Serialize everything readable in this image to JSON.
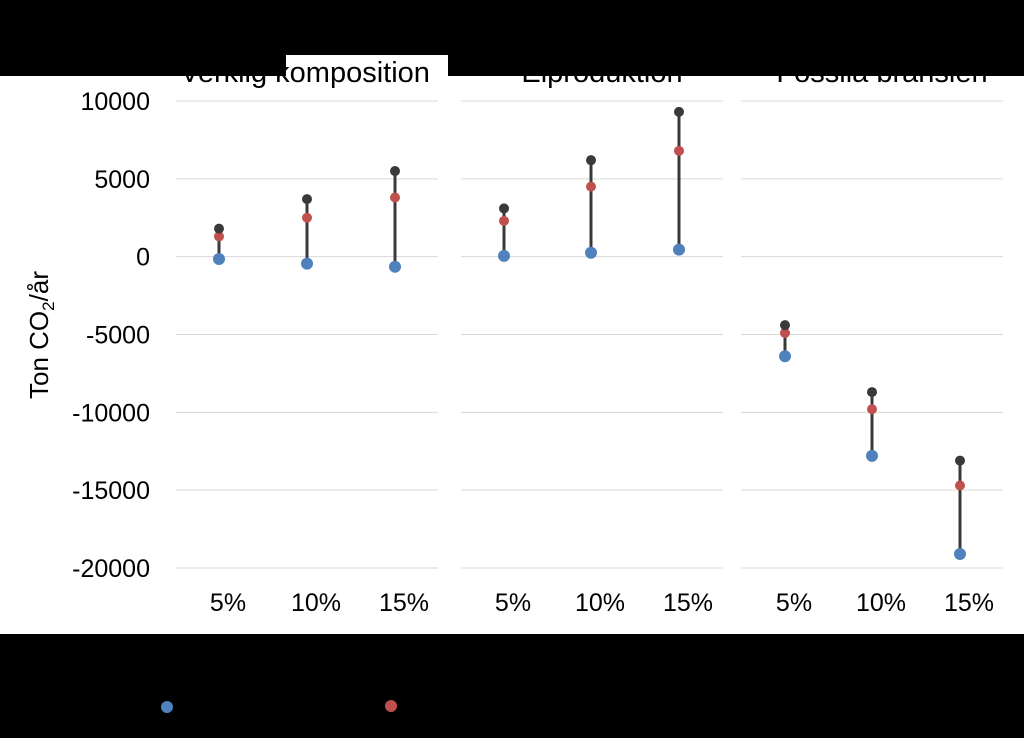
{
  "chart_data": {
    "type": "scatter",
    "style": "dumbbell",
    "ylabel": "Ton CO2/år",
    "ylabel_main": "Ton CO",
    "ylabel_sub": "2",
    "ylabel_tail": "/år",
    "ylim": [
      -20000,
      10000
    ],
    "yticks": [
      10000,
      5000,
      0,
      -5000,
      -10000,
      -15000,
      -20000
    ],
    "ytick_labels": [
      "10000",
      "5000",
      "0",
      "-5000",
      "-10000",
      "-15000",
      "-20000"
    ],
    "grid": true,
    "categories": [
      "5%",
      "10%",
      "15%"
    ],
    "colors": {
      "top": "#3a3a3a",
      "mid": "#c0504d",
      "bottom": "#4f81bd",
      "connector": "#3a3a3a",
      "grid": "#d9d9d9"
    },
    "panels": [
      {
        "title": "Verklig komposition",
        "top": [
          1800,
          3700,
          5500
        ],
        "mid": [
          1300,
          2500,
          3800
        ],
        "bottom": [
          -150,
          -450,
          -650
        ]
      },
      {
        "title": "Elproduktion",
        "top": [
          3100,
          6200,
          9300
        ],
        "mid": [
          2300,
          4500,
          6800
        ],
        "bottom": [
          50,
          250,
          450
        ]
      },
      {
        "title": "Fossila bränslen",
        "top": [
          -4400,
          -8700,
          -13100
        ],
        "mid": [
          -4900,
          -9800,
          -14700
        ],
        "bottom": [
          -6400,
          -12800,
          -19100
        ]
      }
    ]
  }
}
